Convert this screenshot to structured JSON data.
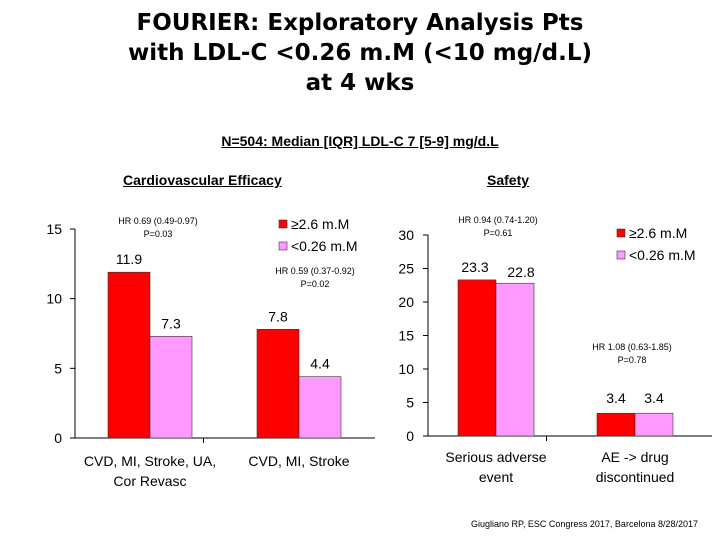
{
  "title_lines": [
    "FOURIER: Exploratory Analysis Pts",
    "with LDL-C <0.26 m.M (<10 mg/d.L)",
    "at 4 wks"
  ],
  "subtitle": "N=504: Median [IQR] LDL-C 7 [5-9] mg/d.L",
  "footnote": "Giugliano RP, ESC Congress 2017, Barcelona 8/28/2017",
  "colors": {
    "series_a": "#ff0000",
    "series_b": "#ff99ff"
  },
  "chart_data": [
    {
      "type": "bar",
      "title": "Cardiovascular Efficacy",
      "categories": [
        "CVD, MI, Stroke, UA, Cor Revasc",
        "CVD, MI, Stroke"
      ],
      "category_lines": [
        [
          "CVD, MI, Stroke, UA,",
          "Cor Revasc"
        ],
        [
          "CVD, MI, Stroke"
        ]
      ],
      "series": [
        {
          "name": "≥2.6 m.M",
          "values": [
            11.9,
            7.8
          ],
          "labels": [
            "11.9",
            "7.8"
          ]
        },
        {
          "name": "<0.26 m.M",
          "values": [
            7.3,
            4.4
          ],
          "labels": [
            "7.3",
            "4.4"
          ]
        }
      ],
      "ylim": [
        0,
        15
      ],
      "yticks": [
        0,
        5,
        10,
        15
      ],
      "legend_position": "top-right",
      "grid": false,
      "annotations": [
        {
          "lines": [
            "HR 0.69 (0.49-0.97)",
            "P=0.03"
          ]
        },
        {
          "lines": [
            "HR 0.59 (0.37-0.92)",
            "P=0.02"
          ]
        }
      ]
    },
    {
      "type": "bar",
      "title": "Safety",
      "categories": [
        "Serious adverse event",
        "AE -> drug discontinued"
      ],
      "category_lines": [
        [
          "Serious adverse",
          "event"
        ],
        [
          "AE -> drug",
          "discontinued"
        ]
      ],
      "series": [
        {
          "name": "≥2.6 m.M",
          "values": [
            23.3,
            3.4
          ],
          "labels": [
            "23.3",
            "3.4"
          ]
        },
        {
          "name": "<0.26 m.M",
          "values": [
            22.8,
            3.4
          ],
          "labels": [
            "22.8",
            "3.4"
          ]
        }
      ],
      "ylim": [
        0,
        30
      ],
      "yticks": [
        0,
        5,
        10,
        15,
        20,
        25,
        30
      ],
      "legend_position": "top-right",
      "grid": false,
      "annotations": [
        {
          "lines": [
            "HR 0.94 (0.74-1.20)",
            "P=0.61"
          ]
        },
        {
          "lines": [
            "HR 1.08 (0.63-1.85)",
            "P=0.78"
          ]
        }
      ]
    }
  ]
}
